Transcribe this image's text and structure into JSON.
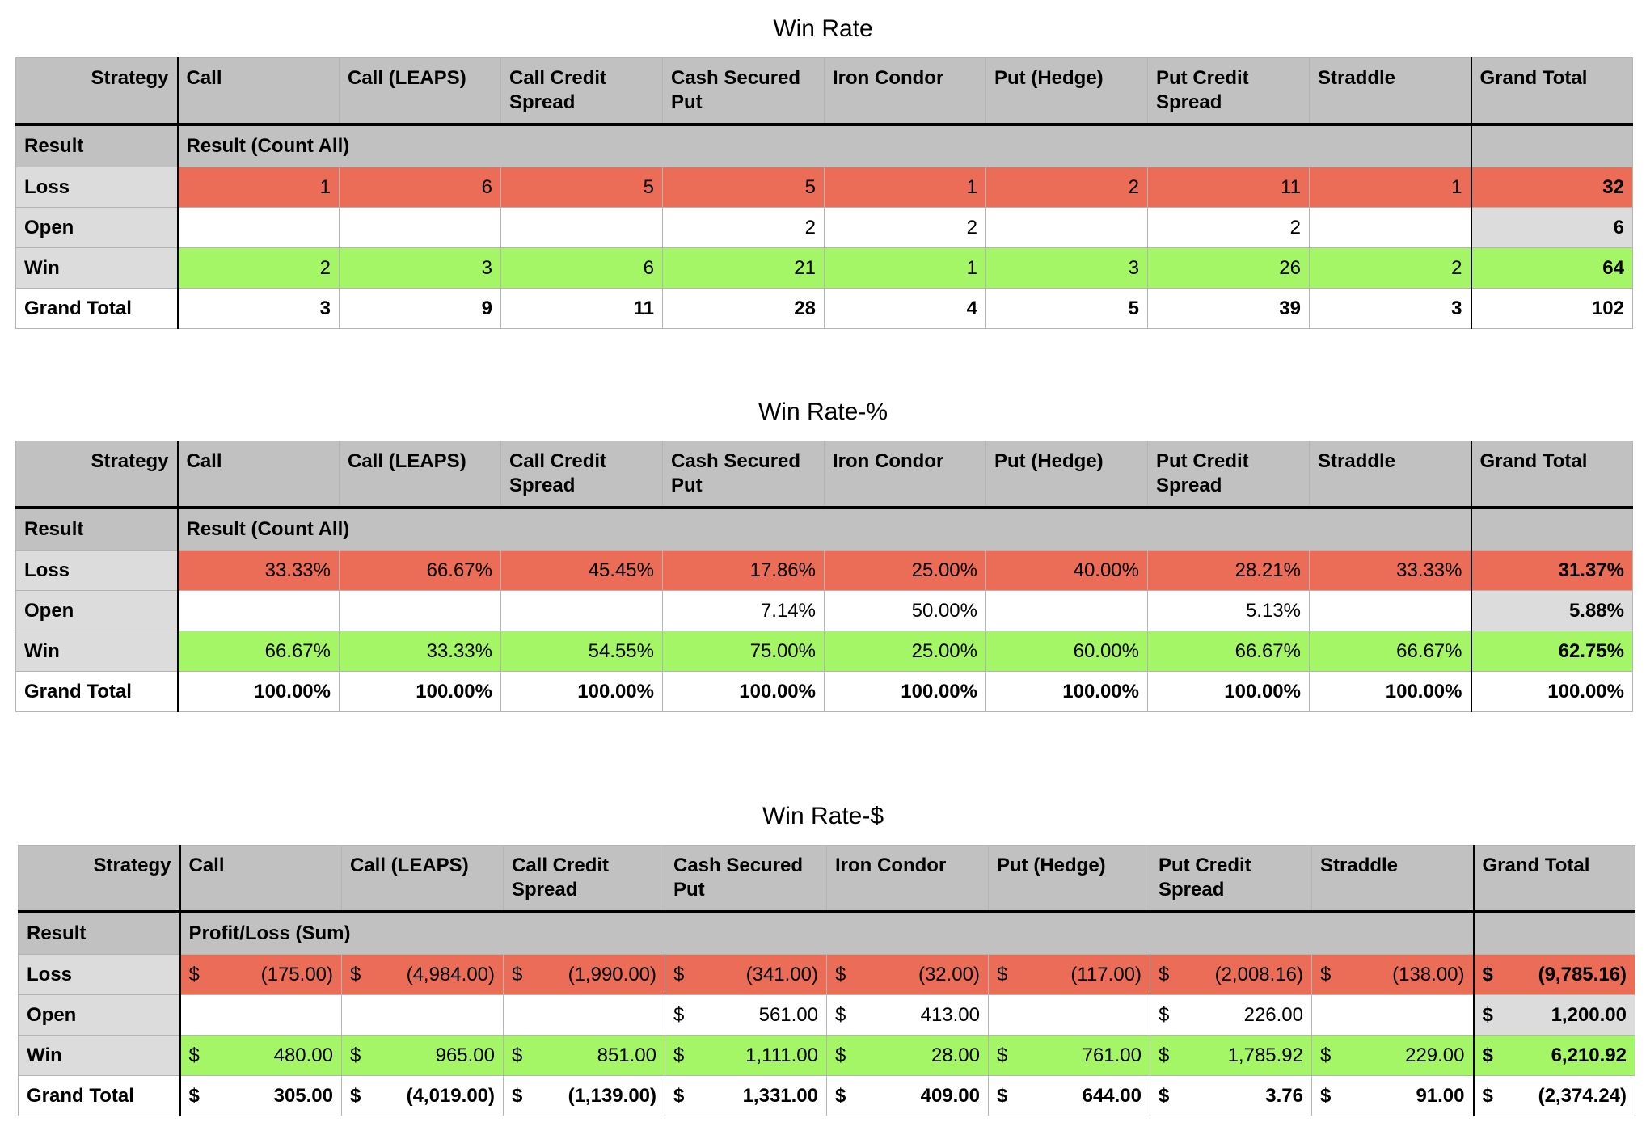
{
  "columns": [
    "Call",
    "Call (LEAPS)",
    "Call Credit Spread",
    "Cash Secured Put",
    "Iron Condor",
    "Put (Hedge)",
    "Put Credit Spread",
    "Straddle"
  ],
  "header": {
    "strategy_label": "Strategy",
    "grand_total_label": "Grand Total",
    "result_label": "Result"
  },
  "row_labels": {
    "loss": "Loss",
    "open": "Open",
    "win": "Win",
    "total": "Grand Total"
  },
  "colors": {
    "loss": "#eb6d58",
    "win": "#a4f666",
    "header": "#c1c1c1",
    "row_label": "#dcdcdc"
  },
  "tables": [
    {
      "title": "Win Rate",
      "measure": "Result (Count All)",
      "rows": {
        "loss": [
          "1",
          "6",
          "5",
          "5",
          "1",
          "2",
          "11",
          "1",
          "32"
        ],
        "open": [
          "",
          "",
          "",
          "2",
          "2",
          "",
          "2",
          "",
          "6"
        ],
        "win": [
          "2",
          "3",
          "6",
          "21",
          "1",
          "3",
          "26",
          "2",
          "64"
        ],
        "total": [
          "3",
          "9",
          "11",
          "28",
          "4",
          "5",
          "39",
          "3",
          "102"
        ]
      }
    },
    {
      "title": "Win Rate-%",
      "measure": "Result (Count All)",
      "rows": {
        "loss": [
          "33.33%",
          "66.67%",
          "45.45%",
          "17.86%",
          "25.00%",
          "40.00%",
          "28.21%",
          "33.33%",
          "31.37%"
        ],
        "open": [
          "",
          "",
          "",
          "7.14%",
          "50.00%",
          "",
          "5.13%",
          "",
          "5.88%"
        ],
        "win": [
          "66.67%",
          "33.33%",
          "54.55%",
          "75.00%",
          "25.00%",
          "60.00%",
          "66.67%",
          "66.67%",
          "62.75%"
        ],
        "total": [
          "100.00%",
          "100.00%",
          "100.00%",
          "100.00%",
          "100.00%",
          "100.00%",
          "100.00%",
          "100.00%",
          "100.00%"
        ]
      }
    },
    {
      "title": "Win Rate-$",
      "measure": "Profit/Loss (Sum)",
      "currency_symbol": "$",
      "rows": {
        "loss": [
          "(175.00)",
          "(4,984.00)",
          "(1,990.00)",
          "(341.00)",
          "(32.00)",
          "(117.00)",
          "(2,008.16)",
          "(138.00)",
          "(9,785.16)"
        ],
        "open": [
          "",
          "",
          "",
          "561.00",
          "413.00",
          "",
          "226.00",
          "",
          "1,200.00"
        ],
        "win": [
          "480.00",
          "965.00",
          "851.00",
          "1,111.00",
          "28.00",
          "761.00",
          "1,785.92",
          "229.00",
          "6,210.92"
        ],
        "total": [
          "305.00",
          "(4,019.00)",
          "(1,139.00)",
          "1,331.00",
          "409.00",
          "644.00",
          "3.76",
          "91.00",
          "(2,374.24)"
        ]
      }
    }
  ]
}
